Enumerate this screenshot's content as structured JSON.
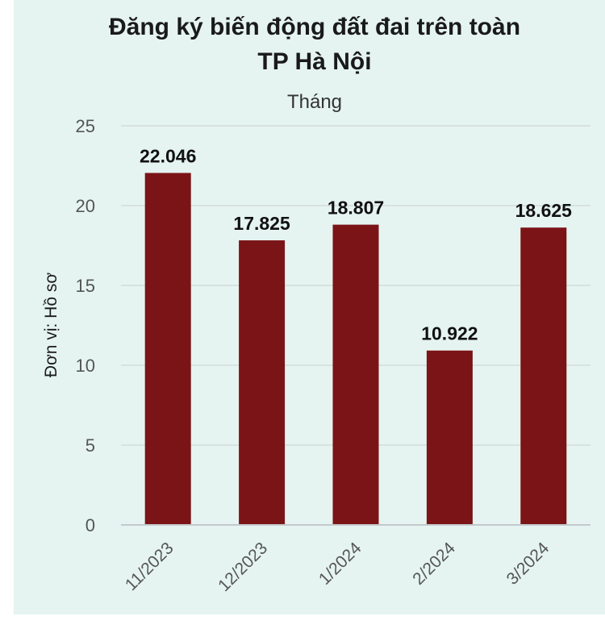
{
  "chart_data": {
    "type": "bar",
    "title_lines": [
      "Đăng ký biến động đất đai trên toàn",
      "TP Hà Nội"
    ],
    "subtitle": "Tháng",
    "xlabel": "",
    "ylabel": "Đơn vị: Hồ sơ",
    "categories": [
      "11/2023",
      "12/2023",
      "1/2024",
      "2/2024",
      "3/2024"
    ],
    "values": [
      22.046,
      17.825,
      18.807,
      10.922,
      18.625
    ],
    "value_labels": [
      "22.046",
      "17.825",
      "18.807",
      "10.922",
      "18.625"
    ],
    "yticks": [
      "0",
      "5",
      "10",
      "15",
      "20",
      "25"
    ],
    "ylim": [
      0,
      25
    ],
    "grid": true,
    "legend": "none",
    "colors": {
      "bar": "#7b1416",
      "background": "#e5f4f1",
      "grid": "#d3dcdb",
      "axis": "#c3c9cc"
    }
  }
}
